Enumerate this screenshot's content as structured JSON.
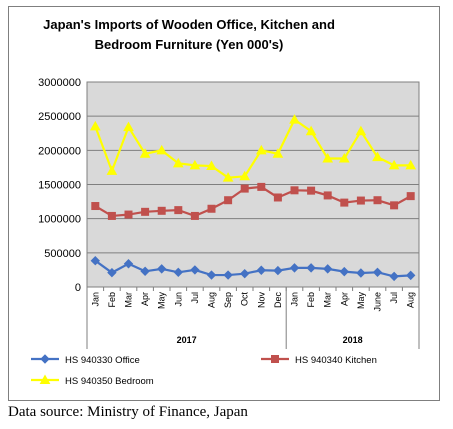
{
  "chart_data": {
    "type": "line",
    "title_lines": [
      "Japan's Imports of  Wooden  Office, Kitchen and",
      "Bedroom Furniture (Yen 000's)"
    ],
    "year_labels": [
      "2017",
      "2018"
    ],
    "categories": [
      "Jan",
      "Feb",
      "Mar",
      "Apr",
      "May",
      "Jun",
      "Jul",
      "Aug",
      "Sep",
      "Oct",
      "Nov",
      "Dec",
      "Jan",
      "Feb",
      "Mar",
      "Apr",
      "May",
      "June",
      "Jul",
      "Aug"
    ],
    "ylim": [
      0,
      3000000
    ],
    "yticks": [
      "0",
      "500000",
      "1000000",
      "1500000",
      "2000000",
      "2500000",
      "3000000"
    ],
    "grid": true,
    "legend_position": "bottom",
    "series": [
      {
        "name": "HS 940330 Office",
        "color": "#4472c4",
        "marker": "diamond",
        "values": [
          385000,
          210000,
          340000,
          230000,
          265000,
          215000,
          250000,
          175000,
          175000,
          195000,
          245000,
          240000,
          280000,
          280000,
          265000,
          225000,
          205000,
          215000,
          155000,
          170000
        ]
      },
      {
        "name": "HS 940340 Kitchen",
        "color": "#c0504d",
        "marker": "square",
        "values": [
          1185000,
          1040000,
          1060000,
          1100000,
          1115000,
          1125000,
          1040000,
          1145000,
          1270000,
          1440000,
          1465000,
          1310000,
          1415000,
          1410000,
          1340000,
          1235000,
          1265000,
          1270000,
          1195000,
          1330000
        ]
      },
      {
        "name": "HS 940350 Bedroom",
        "color": "#ffff00",
        "marker": "triangle",
        "values": [
          2350000,
          1700000,
          2340000,
          1950000,
          2000000,
          1810000,
          1780000,
          1770000,
          1600000,
          1620000,
          2000000,
          1950000,
          2450000,
          2280000,
          1880000,
          1880000,
          2280000,
          1900000,
          1780000,
          1780000
        ]
      }
    ]
  },
  "source_note": "Data source: Ministry of Finance, Japan"
}
